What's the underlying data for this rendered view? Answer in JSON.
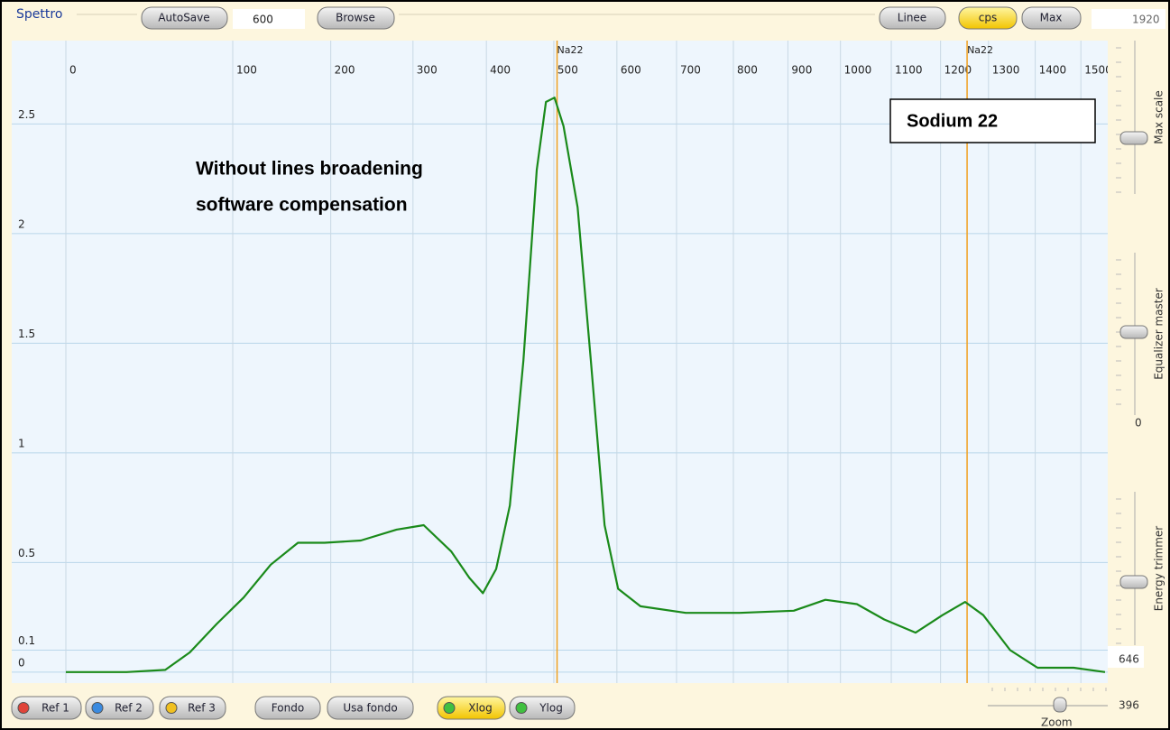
{
  "toolbar": {
    "title": "Spettro",
    "autosave": "AutoSave",
    "autosave_value": "600",
    "browse": "Browse",
    "lines": "Linee",
    "cps": "cps",
    "max": "Max",
    "max_value": "1920"
  },
  "sliders": [
    {
      "label": "Max scale"
    },
    {
      "label": "Equalizer master",
      "value": "0"
    },
    {
      "label": "Energy trimmer",
      "value": "646"
    }
  ],
  "bottom_bar": {
    "buttons": [
      "Ref 1",
      "Ref 2",
      "Ref 3",
      "Fondo",
      "Usa fondo",
      "Xlog",
      "Ylog"
    ],
    "zoom_label": "Zoom",
    "zoom_value": "396"
  },
  "chart_data": {
    "type": "line",
    "xlim": [
      0,
      1560
    ],
    "ylim": [
      -0.05,
      2.88
    ],
    "xticks": [
      0,
      100,
      200,
      300,
      400,
      500,
      600,
      700,
      800,
      900,
      1000,
      1100,
      1200,
      1300,
      1400,
      1500
    ],
    "yticks": [
      0,
      0.1,
      0.5,
      1,
      1.5,
      2,
      2.5
    ],
    "grid": true,
    "x": [
      0,
      22,
      46,
      64,
      86,
      110,
      136,
      164,
      193,
      235,
      279,
      314,
      351,
      376,
      395,
      414,
      434,
      454,
      474,
      488,
      501,
      515,
      537,
      558,
      580,
      602,
      639,
      716,
      811,
      911,
      971,
      1032,
      1086,
      1149,
      1204,
      1251,
      1289,
      1346,
      1405,
      1484,
      1554
    ],
    "series": [
      {
        "color": "#1a8a1a",
        "values": [
          0,
          0,
          0.01,
          0.09,
          0.22,
          0.34,
          0.49,
          0.59,
          0.59,
          0.6,
          0.65,
          0.67,
          0.55,
          0.43,
          0.36,
          0.47,
          0.76,
          1.42,
          2.29,
          2.6,
          2.62,
          2.49,
          2.12,
          1.42,
          0.67,
          0.38,
          0.3,
          0.27,
          0.27,
          0.28,
          0.33,
          0.31,
          0.24,
          0.18,
          0.26,
          0.32,
          0.26,
          0.1,
          0.02,
          0.02,
          0
        ]
      }
    ],
    "markers": [
      {
        "label": "Na22",
        "x": 505,
        "color": "#f0a020"
      },
      {
        "label": "Na22",
        "x": 1255,
        "color": "#f0a020"
      }
    ],
    "annotations": [
      "Without lines broadening",
      "software compensation"
    ],
    "legend_box": "Sodium 22"
  }
}
